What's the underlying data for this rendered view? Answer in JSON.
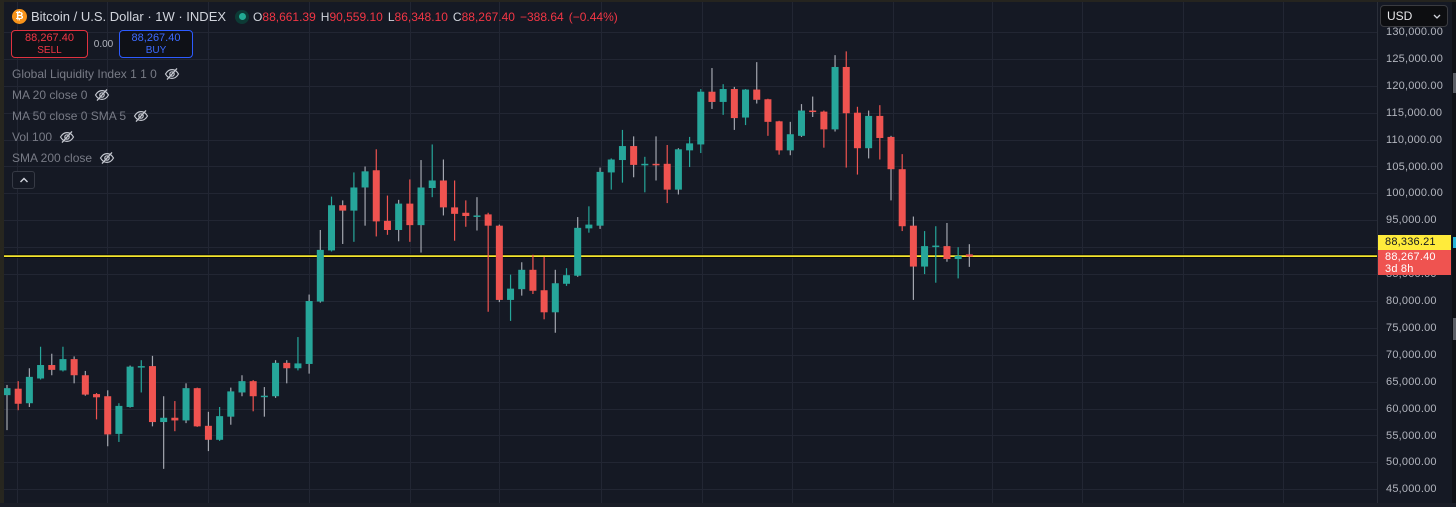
{
  "header": {
    "symbol_icon_glyph": "₿",
    "title": "Bitcoin / U.S. Dollar · 1W · INDEX",
    "ohlc": {
      "o_label": "O",
      "o": "88,661.39",
      "h_label": "H",
      "h": "90,559.10",
      "l_label": "L",
      "l": "86,348.10",
      "c_label": "C",
      "c": "88,267.40",
      "change": "−388.64",
      "change_pct": "(−0.44%)"
    }
  },
  "trade": {
    "sell_price": "88,267.40",
    "sell_label": "SELL",
    "spread": "0.00",
    "buy_price": "88,267.40",
    "buy_label": "BUY"
  },
  "legend": {
    "indicators": [
      {
        "label": "Global Liquidity Index 1 1 0",
        "icon": "eye-off-icon"
      },
      {
        "label": "MA 20 close 0",
        "icon": "eye-off-icon"
      },
      {
        "label": "MA 50 close 0 SMA 5",
        "icon": "eye-off-icon"
      },
      {
        "label": "Vol 100",
        "icon": "eye-off-icon"
      },
      {
        "label": "SMA 200 close",
        "icon": "eye-off-icon"
      }
    ],
    "collapse_icon": "chevron-up-icon"
  },
  "price_axis": {
    "currency": "USD",
    "line_tag": "88,336.21",
    "last_price": "88,267.40",
    "countdown": "3d 8h"
  },
  "colors": {
    "background": "#151924",
    "grid": "#222633",
    "up": "#26a69a",
    "down": "#ef5350",
    "wick_neutral": "#a3a6af",
    "horizontal_line": "#f5e62e",
    "axis_text": "#b2b5be"
  },
  "chart_data": {
    "type": "candlestick",
    "title": "Bitcoin / U.S. Dollar · 1W · INDEX",
    "interval": "1W",
    "xlabel": "",
    "ylabel": "USD",
    "ylim": [
      45000,
      130000
    ],
    "grid": true,
    "legend_position": "top-left",
    "y_ticks": [
      {
        "value": 130000,
        "label": "130,000.00"
      },
      {
        "value": 125000,
        "label": "125,000.00"
      },
      {
        "value": 120000,
        "label": "120,000.00"
      },
      {
        "value": 115000,
        "label": "115,000.00"
      },
      {
        "value": 110000,
        "label": "110,000.00"
      },
      {
        "value": 105000,
        "label": "105,000.00"
      },
      {
        "value": 100000,
        "label": "100,000.00"
      },
      {
        "value": 95000,
        "label": "95,000.00"
      },
      {
        "value": 90000,
        "label": "90,000.00"
      },
      {
        "value": 85000,
        "label": "85,000.00"
      },
      {
        "value": 80000,
        "label": "80,000.00"
      },
      {
        "value": 75000,
        "label": "75,000.00"
      },
      {
        "value": 70000,
        "label": "70,000.00"
      },
      {
        "value": 65000,
        "label": "65,000.00"
      },
      {
        "value": 60000,
        "label": "60,000.00"
      },
      {
        "value": 55000,
        "label": "55,000.00"
      },
      {
        "value": 50000,
        "label": "50,000.00"
      },
      {
        "value": 45000,
        "label": "45,000.00"
      }
    ],
    "horizontal_line": {
      "price": 88336.21,
      "label": "88,336.21"
    },
    "last_price": {
      "price": 88267.4,
      "label": "88,267.40",
      "countdown": "3d 8h"
    },
    "candle_fields": [
      "open",
      "high",
      "low",
      "close",
      "neutral_wick"
    ],
    "candles": [
      [
        62500,
        64400,
        56000,
        63800,
        1
      ],
      [
        63700,
        65100,
        59700,
        60900,
        0
      ],
      [
        61000,
        67500,
        60300,
        65900,
        1
      ],
      [
        65600,
        71500,
        65400,
        68100,
        0
      ],
      [
        68100,
        70200,
        66200,
        67200,
        1
      ],
      [
        67100,
        71500,
        66900,
        69200,
        0
      ],
      [
        69200,
        69700,
        64700,
        66200,
        1
      ],
      [
        66200,
        67000,
        62400,
        62600,
        1
      ],
      [
        62700,
        62900,
        58000,
        62100,
        0
      ],
      [
        62300,
        63400,
        53000,
        55200,
        1
      ],
      [
        55300,
        61000,
        53800,
        60500,
        0
      ],
      [
        60300,
        68000,
        60200,
        67800,
        1
      ],
      [
        67800,
        69000,
        63000,
        67900,
        0
      ],
      [
        67900,
        69800,
        56700,
        57500,
        1
      ],
      [
        57500,
        62300,
        48800,
        58300,
        1
      ],
      [
        58300,
        61400,
        55800,
        57800,
        0
      ],
      [
        57800,
        64700,
        57300,
        63800,
        1
      ],
      [
        63800,
        63900,
        56600,
        56700,
        0
      ],
      [
        56800,
        59400,
        52100,
        54200,
        1
      ],
      [
        54200,
        60300,
        54000,
        58600,
        0
      ],
      [
        58500,
        63900,
        57000,
        63200,
        1
      ],
      [
        63000,
        66200,
        62300,
        65100,
        1
      ],
      [
        65100,
        65300,
        59500,
        62300,
        0
      ],
      [
        62300,
        64000,
        58500,
        62400,
        1
      ],
      [
        62300,
        69000,
        62000,
        68500,
        1
      ],
      [
        68500,
        69000,
        64700,
        67500,
        1
      ],
      [
        67500,
        73300,
        67100,
        68400,
        0
      ],
      [
        68300,
        81200,
        66500,
        80000,
        1
      ],
      [
        79900,
        93200,
        79700,
        89500,
        1
      ],
      [
        89400,
        99400,
        89200,
        97800,
        0
      ],
      [
        97800,
        98700,
        90600,
        96800,
        1
      ],
      [
        96800,
        103900,
        91000,
        101100,
        0
      ],
      [
        101100,
        105000,
        94000,
        104100,
        1
      ],
      [
        104300,
        108200,
        92000,
        94800,
        0
      ],
      [
        94900,
        99600,
        92300,
        93200,
        0
      ],
      [
        93200,
        98800,
        91100,
        98100,
        1
      ],
      [
        98100,
        102600,
        91000,
        94100,
        0
      ],
      [
        94100,
        106200,
        89000,
        101100,
        1
      ],
      [
        101000,
        109100,
        99300,
        102400,
        0
      ],
      [
        102400,
        106300,
        95900,
        97400,
        1
      ],
      [
        97400,
        102400,
        91200,
        96200,
        0
      ],
      [
        96400,
        98700,
        93800,
        95800,
        0
      ],
      [
        95800,
        99300,
        93100,
        95900,
        1
      ],
      [
        96100,
        96400,
        78000,
        94000,
        0
      ],
      [
        94000,
        94200,
        79800,
        80200,
        1
      ],
      [
        80200,
        84900,
        76300,
        82300,
        0
      ],
      [
        82200,
        87200,
        81000,
        85800,
        1
      ],
      [
        85800,
        88600,
        81300,
        81900,
        0
      ],
      [
        82000,
        88200,
        76600,
        77900,
        0
      ],
      [
        77900,
        85800,
        74100,
        83300,
        1
      ],
      [
        83200,
        86100,
        82800,
        84800,
        0
      ],
      [
        84700,
        95600,
        84500,
        93600,
        1
      ],
      [
        93500,
        97600,
        92700,
        94200,
        0
      ],
      [
        94000,
        104800,
        93400,
        104000,
        1
      ],
      [
        103900,
        106500,
        100700,
        106300,
        0
      ],
      [
        106200,
        111800,
        102000,
        108800,
        0
      ],
      [
        108800,
        110600,
        103000,
        105300,
        1
      ],
      [
        105300,
        106800,
        100200,
        105500,
        0
      ],
      [
        105500,
        110600,
        102400,
        105400,
        1
      ],
      [
        105500,
        109000,
        98200,
        100700,
        0
      ],
      [
        100700,
        108400,
        99800,
        108200,
        1
      ],
      [
        108000,
        110500,
        104900,
        109300,
        0
      ],
      [
        109100,
        119400,
        107500,
        118900,
        0
      ],
      [
        118900,
        123300,
        115700,
        117000,
        1
      ],
      [
        117000,
        120300,
        114600,
        119400,
        0
      ],
      [
        119400,
        119800,
        111800,
        114000,
        1
      ],
      [
        114100,
        119400,
        112700,
        119300,
        0
      ],
      [
        119300,
        124400,
        116700,
        117400,
        1
      ],
      [
        117500,
        117600,
        110700,
        113300,
        0
      ],
      [
        113400,
        113500,
        107200,
        108000,
        0
      ],
      [
        108000,
        113300,
        107100,
        111000,
        1
      ],
      [
        110700,
        116600,
        110500,
        115400,
        1
      ],
      [
        115400,
        118000,
        114200,
        115300,
        1
      ],
      [
        115200,
        115400,
        108500,
        111900,
        0
      ],
      [
        111900,
        125700,
        111500,
        123500,
        1
      ],
      [
        123500,
        126400,
        104800,
        114900,
        0
      ],
      [
        115000,
        116100,
        103500,
        108400,
        0
      ],
      [
        108400,
        115400,
        106500,
        114400,
        1
      ],
      [
        114400,
        116400,
        106300,
        110300,
        0
      ],
      [
        110500,
        110700,
        98700,
        104500,
        1
      ],
      [
        104500,
        107300,
        93000,
        93900,
        0
      ],
      [
        94000,
        95700,
        80200,
        86400,
        1
      ],
      [
        86400,
        93000,
        85000,
        90200,
        0
      ],
      [
        90200,
        93900,
        83400,
        90300,
        0
      ],
      [
        90200,
        94500,
        87300,
        87800,
        1
      ],
      [
        87800,
        90000,
        84200,
        88400,
        0
      ],
      [
        88661.39,
        90559.1,
        86348.1,
        88267.4,
        1
      ]
    ]
  }
}
